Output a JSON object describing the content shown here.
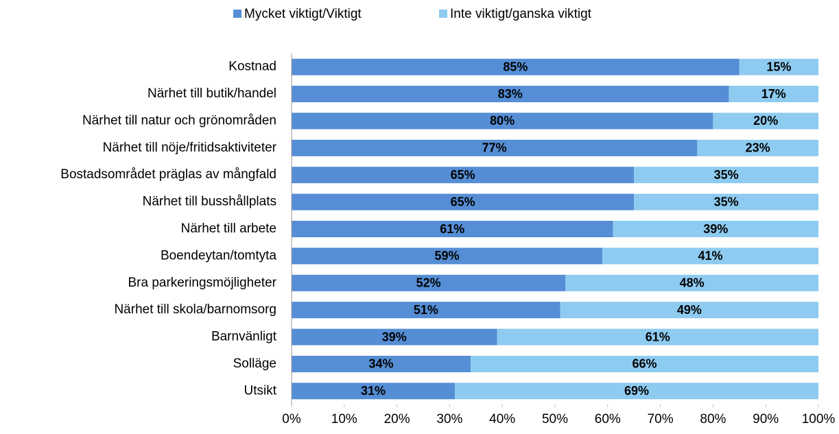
{
  "chart_data": {
    "type": "stacked_barh",
    "categories": [
      "Kostnad",
      "Närhet till butik/handel",
      "Närhet till natur och grönområden",
      "Närhet till nöje/fritidsaktiviteter",
      "Bostadsområdet präglas av mångfald",
      "Närhet till busshållplats",
      "Närhet till arbete",
      "Boendeytan/tomtyta",
      "Bra parkeringsmöjligheter",
      "Närhet till skola/barnomsorg",
      "Barnvänligt",
      "Solläge",
      "Utsikt"
    ],
    "series": [
      {
        "name": "Mycket viktigt/Viktigt",
        "color": "#558ed5",
        "values": [
          85,
          83,
          80,
          77,
          65,
          65,
          61,
          59,
          52,
          51,
          39,
          34,
          31
        ],
        "value_labels": [
          "85%",
          "83%",
          "80%",
          "77%",
          "65%",
          "65%",
          "61%",
          "59%",
          "52%",
          "51%",
          "39%",
          "34%",
          "31%"
        ]
      },
      {
        "name": "Inte viktigt/ganska viktigt",
        "color": "#8ecbf0",
        "values": [
          15,
          17,
          20,
          23,
          35,
          35,
          39,
          41,
          48,
          49,
          61,
          66,
          69
        ],
        "value_labels": [
          "15%",
          "17%",
          "20%",
          "23%",
          "35%",
          "35%",
          "39%",
          "41%",
          "48%",
          "49%",
          "61%",
          "66%",
          "69%"
        ]
      }
    ],
    "xlim": [
      0,
      100
    ],
    "xticks": [
      {
        "value": 0,
        "label": "0%"
      },
      {
        "value": 10,
        "label": "10%"
      },
      {
        "value": 20,
        "label": "20%"
      },
      {
        "value": 30,
        "label": "30%"
      },
      {
        "value": 40,
        "label": "40%"
      },
      {
        "value": 50,
        "label": "50%"
      },
      {
        "value": 60,
        "label": "60%"
      },
      {
        "value": 70,
        "label": "70%"
      },
      {
        "value": 80,
        "label": "80%"
      },
      {
        "value": 90,
        "label": "90%"
      },
      {
        "value": 100,
        "label": "100%"
      }
    ],
    "legend": "top"
  }
}
